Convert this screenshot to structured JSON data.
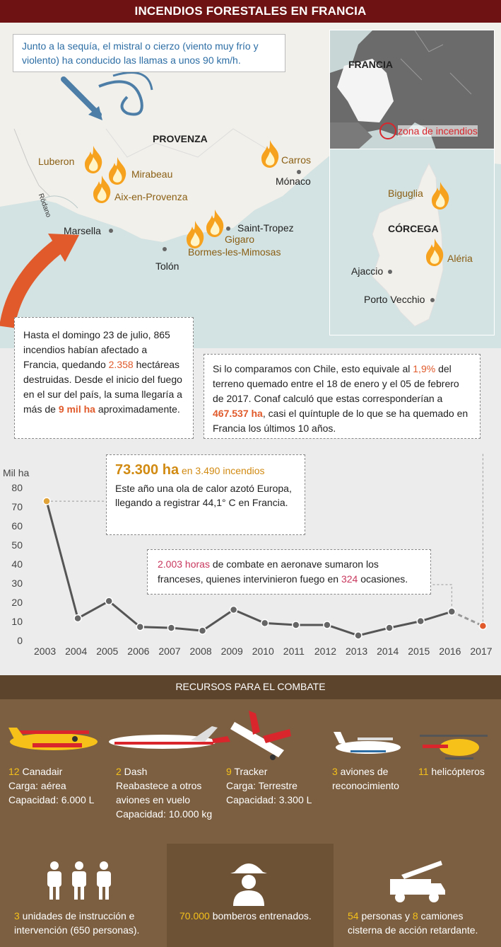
{
  "header": {
    "title": "INCENDIOS FORESTALES EN FRANCIA"
  },
  "map": {
    "wind_note": "Junto a la sequía, el mistral o cierzo (viento muy frío y violento) ha conducido las llamas a unos 90 km/h.",
    "region": "PROVENZA",
    "river": "Ródano",
    "fires": [
      "Luberon",
      "Mirabeau",
      "Aix-en-Provenza",
      "Carros",
      "Gigaro",
      "Bormes-les-Mimosas"
    ],
    "cities": [
      "Marsella",
      "Tolón",
      "Saint-Tropez",
      "Mónaco"
    ],
    "inset": {
      "country": "FRANCIA",
      "zone_label": "zona de incendios"
    },
    "corsica": {
      "name": "CÓRCEGA",
      "fires": [
        "Biguglia",
        "Aléria"
      ],
      "cities": [
        "Ajaccio",
        "Porto Vecchio"
      ]
    },
    "colors": {
      "sea": "#d3e2e2",
      "land": "#f2f0ea",
      "fire": "#f6a21f",
      "arrow": "#e05a2b"
    }
  },
  "box1": {
    "pre": "Hasta el domingo 23 de julio, 865 incendios habían afectado a Francia, quedando ",
    "num": "2.358",
    "mid": " hectáreas destruidas. Desde el inicio del fuego en el sur del país, la suma llegaría a más de ",
    "hl": "9 mil ha",
    "post": " aproximadamente."
  },
  "box2": {
    "pre": "Si lo comparamos con Chile, esto equivale al ",
    "pct": "1,9%",
    "mid": " del terreno quemado entre el 18 de enero y el 05 de febrero de 2017. Conaf calculó que estas corresponderían a ",
    "hl": "467.537 ha",
    "post": ", casi el quíntuple de lo que se ha quemado en Francia los últimos 10 años."
  },
  "box3": {
    "big": "73.300 ha",
    "small": " en 3.490 incendios",
    "text": "Este año una ola de calor azotó Europa, llegando a registrar 44,1° C en Francia."
  },
  "box4": {
    "hours": "2.003 horas",
    "mid": " de combate en aeronave sumaron los franceses, quienes intervinieron fuego en ",
    "times": "324",
    "post": " ocasiones."
  },
  "chart_data": {
    "type": "line",
    "ylabel": "Mil ha",
    "ylim": [
      0,
      80
    ],
    "yticks": [
      0,
      10,
      20,
      30,
      40,
      50,
      60,
      70,
      80
    ],
    "x": [
      "2003",
      "2004",
      "2005",
      "2006",
      "2007",
      "2008",
      "2009",
      "2010",
      "2011",
      "2012",
      "2013",
      "2014",
      "2015",
      "2016",
      "2017"
    ],
    "values": [
      73.3,
      12,
      21,
      7.5,
      7,
      5.5,
      16.5,
      9.5,
      8.5,
      8.5,
      3,
      7,
      10.5,
      15.5,
      8
    ],
    "dashed_last_segment": true,
    "colors": {
      "line": "#555555",
      "first_point": "#e0a33a",
      "last_point": "#e05a2b",
      "point": "#666666"
    }
  },
  "resources": {
    "title": "RECURSOS PARA EL COMBATE",
    "aircraft": [
      {
        "num": "12",
        "name": " Canadair",
        "lines": [
          "Carga: aérea",
          "Capacidad: 6.000 L"
        ]
      },
      {
        "num": "2",
        "name": " Dash",
        "lines": [
          "Reabastece a otros",
          "aviones en vuelo",
          "Capacidad: 10.000 kg"
        ]
      },
      {
        "num": "9",
        "name": " Tracker",
        "lines": [
          "Carga: Terrestre",
          "Capacidad: 3.300 L"
        ]
      },
      {
        "num": "3",
        "name": " aviones de",
        "lines": [
          "reconocimiento"
        ]
      },
      {
        "num": "11",
        "name": " helicópteros",
        "lines": []
      }
    ],
    "personnel": [
      {
        "num": "3",
        "name": " unidades de instrucción e",
        "line2": "intervención  (650 personas)."
      },
      {
        "num": "70.000",
        "name": " bomberos entrenados.",
        "line2": ""
      },
      {
        "num": "54",
        "name": " personas y ",
        "num2": "8",
        "name2": " camiones",
        "line2": "cisterna de acción retardante."
      }
    ]
  }
}
